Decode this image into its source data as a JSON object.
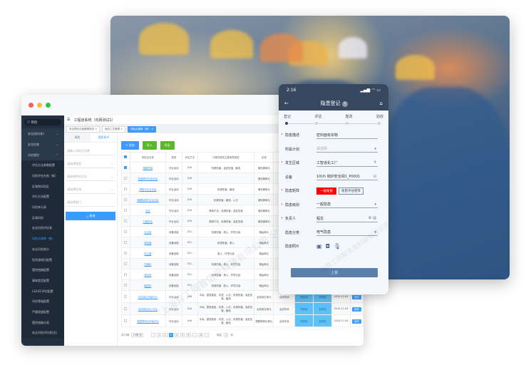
{
  "watermark": "上海异工同智信息科技有限公司 Shanghai Inroad Information Technology Co., Ltd.",
  "colors": {
    "accent": "#3d9bff",
    "sidebar": "#22303f",
    "phone_header": "#36475f",
    "danger": "#ff0000",
    "low_risk": "#5ec2f6"
  },
  "sidebar": {
    "search": "风险",
    "items": [
      {
        "label": "安全巡检(新)"
      },
      {
        "label": "安全检查"
      },
      {
        "label": "风险管控"
      }
    ],
    "sub_items": [
      "评估方法参数配置",
      "风险评估台账（新）",
      "区域和风险区",
      "评价方法配置",
      "风险单元表",
      "区域风险",
      "安全风险评估表",
      "风险点清单（新）",
      "安全风险统计",
      "危险源辨识配置",
      "管控措施配置",
      "事故类型配置",
      "LS/LEC评估配置",
      "风险等级配置",
      "严重程度配置",
      "管控措施分类",
      "安全风险评估表(旧)"
    ],
    "active_index": 7
  },
  "header": {
    "title": "工程道系统（内网测试1）"
  },
  "tabs": [
    "安全风险分级管理系统 ×",
    "危险工艺管理 ×",
    "风险点清单（新） ×"
  ],
  "filter": {
    "tabs": [
      "风险",
      "搜索条件"
    ],
    "fields": [
      "请输入风险点名称",
      "请选择类型",
      "请选择评估方法",
      "请选择区域",
      "请选择部门"
    ],
    "query": "查询"
  },
  "toolbar": {
    "add": "+ 添加",
    "import": "导入",
    "export": "导出"
  },
  "table": {
    "headers": [
      "",
      "风险点名称",
      "类型",
      "评估方法",
      "可能导致的主要事故类型",
      "区域",
      "",
      "",
      "",
      "",
      ""
    ],
    "rows": [
      [
        "储罐吊装",
        "作业活动",
        "JHA",
        "机械伤害、高处坠落、触电",
        "储存罐单元"
      ],
      [
        "检维修作业及试运",
        "作业活动",
        "JHA",
        "",
        "储存罐单元"
      ],
      [
        "焊接作业及试运",
        "作业活动",
        "JHA",
        "机械伤害、触电",
        "储存罐单元"
      ],
      [
        "储罐检修作业及试运",
        "作业活动",
        "JHA",
        "机械伤害、触电、火灾",
        "储存罐单元"
      ],
      [
        "巡检",
        "作业活动",
        "JHA",
        "物体打击、机械伤害、高处坠落",
        "储存罐单元"
      ],
      [
        "打磨作业",
        "作业活动",
        "JHA",
        "物体打击、机械伤害、高处坠落",
        "储存罐单元"
      ],
      [
        "反应釜",
        "设备设施",
        "SCL",
        "机械伤害、着火、环境污染",
        "储运单元"
      ],
      [
        "换热器",
        "设备设施",
        "SCL",
        "机械伤害、着火",
        "储运单元"
      ],
      [
        "除尘器",
        "设备设施",
        "SCL",
        "着火、环境污染",
        "储运单元"
      ],
      [
        "压缩机",
        "设备设施",
        "SCL",
        "机械伤害、着火、环境污染",
        "储运单元"
      ],
      [
        "进料泵",
        "设备设施",
        "SCL",
        "机械伤害、着火、环境污染",
        "储运单元"
      ],
      [
        "输送机",
        "设备设施",
        "SCL",
        "机械伤害、着火、环境污染",
        "储运单元"
      ],
      [
        "合成岗位吊装作业",
        "作业活动",
        "JHA",
        "中毒、窒息窒息、灼烫、火灾、机械伤害、高处坠落、触电",
        "合成岗位单元",
        "合成车间",
        "低风险",
        "低风险",
        "2020-11-04",
        "操作"
      ],
      [
        "合成岗位动火作业",
        "作业活动",
        "JHA",
        "中毒、窒息窒息、灼烫、火灾、机械伤害、高处坠落、触电",
        "合成岗位单元",
        "合成车间",
        "低风险",
        "低风险",
        "2019-11-04",
        "操作"
      ],
      [
        "氯酸钾岗位吊装作业",
        "作业活动",
        "JHA",
        "中毒、窒息窒息、灼烫、火灾、机械伤害、高处坠落、触电",
        "氯酸钾岗位单元",
        "合成车间",
        "低风险",
        "低风险",
        "2019-11-04",
        "操作"
      ]
    ]
  },
  "pagination": {
    "total": "共72条",
    "page_size": "10条/页",
    "pages": [
      "‹",
      "1",
      "2",
      "3",
      "4",
      "5",
      "6",
      "...",
      "8",
      "›"
    ],
    "current": "3",
    "goto_label": "前往",
    "goto_value": "1",
    "goto_unit": "页"
  },
  "phone": {
    "time": "2:16",
    "title": "隐患登记",
    "help": "?",
    "steps": [
      "登记",
      "评估",
      "整改",
      "验收"
    ],
    "current_step": 0,
    "fields": [
      {
        "label": "隐患描述",
        "value": "密封面有杂物",
        "required": true
      },
      {
        "label": "所属计划",
        "placeholder": "请选择",
        "required": false
      },
      {
        "label": "发生区域",
        "value": "工智道化工厂",
        "required": true
      },
      {
        "label": "设备",
        "value": "10t/h 锅炉安全阀1_P0001",
        "required": false
      },
      {
        "label": "隐患矩阵",
        "badge": "一般隐患",
        "button": "隐患评估矩阵",
        "required": true
      },
      {
        "label": "隐患级别",
        "value": "一般隐患",
        "required": true
      },
      {
        "label": "负责人",
        "value": "程龙",
        "required": true
      },
      {
        "label": "隐患分类",
        "value": "电气隐患",
        "required": false
      },
      {
        "label": "隐患照片",
        "required": false
      }
    ],
    "submit": "上报"
  }
}
